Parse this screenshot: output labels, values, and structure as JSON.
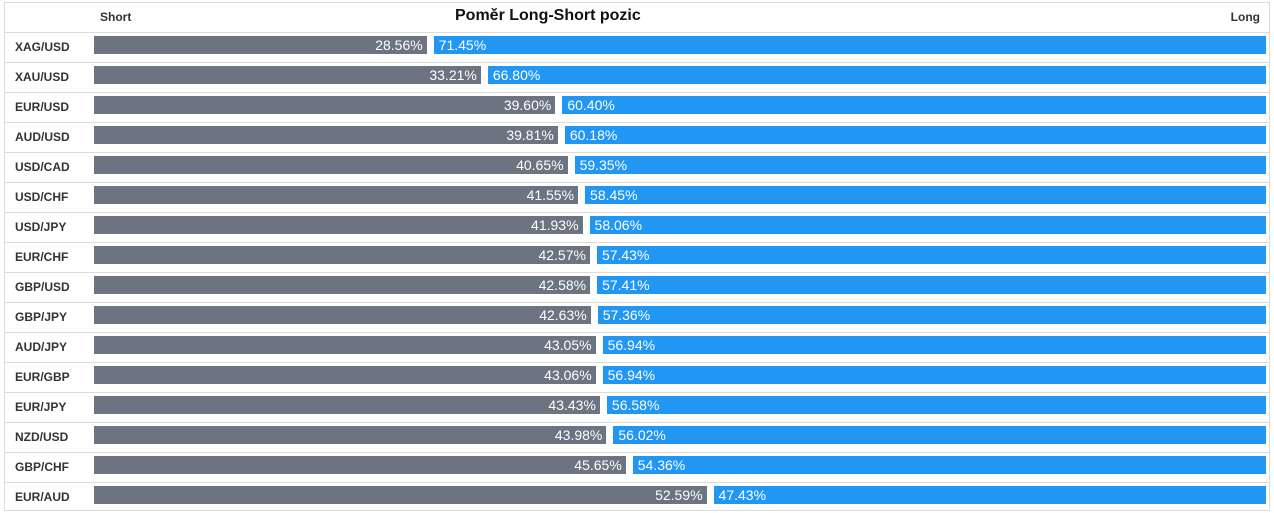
{
  "header": {
    "title": "Poměr Long-Short pozic",
    "short_label": "Short",
    "long_label": "Long"
  },
  "colors": {
    "short": "#6b7480",
    "long": "#2196f3"
  },
  "chart_data": {
    "type": "bar",
    "title": "Poměr Long-Short pozic",
    "stacked": true,
    "orientation": "horizontal",
    "categories": [
      "XAG/USD",
      "XAU/USD",
      "EUR/USD",
      "AUD/USD",
      "USD/CAD",
      "USD/CHF",
      "USD/JPY",
      "EUR/CHF",
      "GBP/USD",
      "GBP/JPY",
      "AUD/JPY",
      "EUR/GBP",
      "EUR/JPY",
      "NZD/USD",
      "GBP/CHF",
      "EUR/AUD"
    ],
    "series": [
      {
        "name": "Short",
        "values": [
          28.56,
          33.21,
          39.6,
          39.81,
          40.65,
          41.55,
          41.93,
          42.57,
          42.58,
          42.63,
          43.05,
          43.06,
          43.43,
          43.98,
          45.65,
          52.59
        ],
        "labels": [
          "28.56%",
          "33.21%",
          "39.60%",
          "39.81%",
          "40.65%",
          "41.55%",
          "41.93%",
          "42.57%",
          "42.58%",
          "42.63%",
          "43.05%",
          "43.06%",
          "43.43%",
          "43.98%",
          "45.65%",
          "52.59%"
        ]
      },
      {
        "name": "Long",
        "values": [
          71.45,
          66.8,
          60.4,
          60.18,
          59.35,
          58.45,
          58.06,
          57.43,
          57.41,
          57.36,
          56.94,
          56.94,
          56.58,
          56.02,
          54.36,
          47.43
        ],
        "labels": [
          "71.45%",
          "66.80%",
          "60.40%",
          "60.18%",
          "59.35%",
          "58.45%",
          "58.06%",
          "57.43%",
          "57.41%",
          "57.36%",
          "56.94%",
          "56.94%",
          "56.58%",
          "56.02%",
          "54.36%",
          "47.43%"
        ]
      }
    ]
  }
}
